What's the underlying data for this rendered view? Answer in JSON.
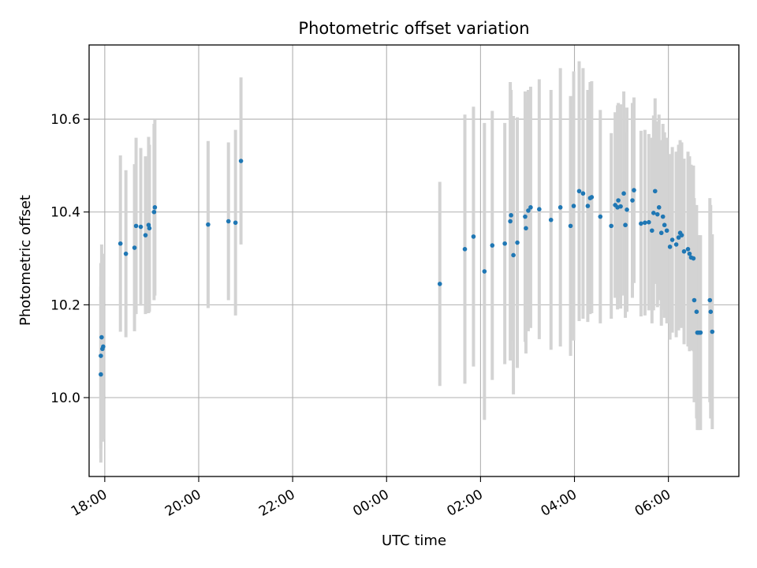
{
  "chart_data": {
    "type": "scatter",
    "title": "Photometric offset variation",
    "xlabel": "UTC time",
    "ylabel": "Photometric offset",
    "x_unit": "UTC time (HH:MM); times after midnight belong to the following day",
    "xlim": [
      "17:40",
      "07:30"
    ],
    "ylim": [
      9.83,
      10.76
    ],
    "x_ticks": [
      "18:00",
      "20:00",
      "22:00",
      "00:00",
      "02:00",
      "04:00",
      "06:00"
    ],
    "y_ticks": [
      "10.0",
      "10.2",
      "10.4",
      "10.6"
    ],
    "y_tick_values": [
      10.0,
      10.2,
      10.4,
      10.6
    ],
    "grid": true,
    "marker_color": "#1f77b4",
    "errorbar_color": "#d3d3d3",
    "series": [
      {
        "x": [
          "17:55",
          "17:55",
          "17:56",
          "17:57",
          "17:58",
          "18:20",
          "18:27",
          "18:38",
          "18:40",
          "18:46",
          "18:52",
          "18:56",
          "18:57",
          "19:03",
          "19:04",
          "20:12",
          "20:38",
          "20:47",
          "20:54",
          "01:08",
          "01:40",
          "01:51",
          "02:05",
          "02:15",
          "02:31",
          "02:38",
          "02:39",
          "02:42",
          "02:47",
          "02:57",
          "02:58",
          "03:01",
          "03:04",
          "03:15",
          "03:30",
          "03:42",
          "03:55",
          "03:59",
          "04:06",
          "04:11",
          "04:17",
          "04:20",
          "04:22",
          "04:33",
          "04:47",
          "04:52",
          "04:55",
          "04:56",
          "04:59",
          "05:03",
          "05:05",
          "05:07",
          "05:14",
          "05:16",
          "05:25",
          "05:30",
          "05:35",
          "05:39",
          "05:41",
          "05:43",
          "05:46",
          "05:48",
          "05:51",
          "05:53",
          "05:55",
          "05:58",
          "06:02",
          "06:05",
          "06:10",
          "06:13",
          "06:15",
          "06:17",
          "06:20",
          "06:25",
          "06:27",
          "06:29",
          "06:32",
          "06:33",
          "06:36",
          "06:37",
          "06:39",
          "06:41",
          "06:53",
          "06:54",
          "06:56"
        ],
        "y": [
          10.05,
          10.09,
          10.13,
          10.105,
          10.11,
          10.332,
          10.31,
          10.323,
          10.37,
          10.368,
          10.35,
          10.372,
          10.365,
          10.4,
          10.41,
          10.373,
          10.38,
          10.377,
          10.51,
          10.245,
          10.32,
          10.347,
          10.272,
          10.328,
          10.332,
          10.38,
          10.393,
          10.307,
          10.334,
          10.39,
          10.365,
          10.403,
          10.41,
          10.406,
          10.383,
          10.41,
          10.37,
          10.413,
          10.445,
          10.44,
          10.413,
          10.43,
          10.432,
          10.39,
          10.37,
          10.415,
          10.41,
          10.425,
          10.412,
          10.44,
          10.372,
          10.405,
          10.425,
          10.447,
          10.375,
          10.377,
          10.378,
          10.36,
          10.398,
          10.445,
          10.395,
          10.41,
          10.355,
          10.39,
          10.372,
          10.36,
          10.325,
          10.34,
          10.33,
          10.345,
          10.355,
          10.35,
          10.315,
          10.32,
          10.31,
          10.302,
          10.3,
          10.21,
          10.185,
          10.14,
          10.14,
          10.14,
          10.21,
          10.185,
          10.142
        ],
        "yerr": [
          0.19,
          0.2,
          0.2,
          0.2,
          0.2,
          0.19,
          0.18,
          0.18,
          0.19,
          0.17,
          0.17,
          0.19,
          0.18,
          0.19,
          0.19,
          0.18,
          0.17,
          0.2,
          0.18,
          0.22,
          0.29,
          0.28,
          0.32,
          0.29,
          0.26,
          0.3,
          0.27,
          0.3,
          0.27,
          0.27,
          0.27,
          0.26,
          0.26,
          0.28,
          0.28,
          0.3,
          0.28,
          0.29,
          0.28,
          0.27,
          0.25,
          0.25,
          0.25,
          0.23,
          0.2,
          0.2,
          0.22,
          0.21,
          0.22,
          0.22,
          0.2,
          0.22,
          0.21,
          0.2,
          0.2,
          0.2,
          0.19,
          0.2,
          0.21,
          0.2,
          0.2,
          0.2,
          0.2,
          0.2,
          0.2,
          0.2,
          0.2,
          0.2,
          0.2,
          0.2,
          0.2,
          0.2,
          0.2,
          0.21,
          0.21,
          0.2,
          0.2,
          0.22,
          0.23,
          0.21,
          0.21,
          0.21,
          0.22,
          0.23,
          0.21
        ]
      }
    ]
  }
}
